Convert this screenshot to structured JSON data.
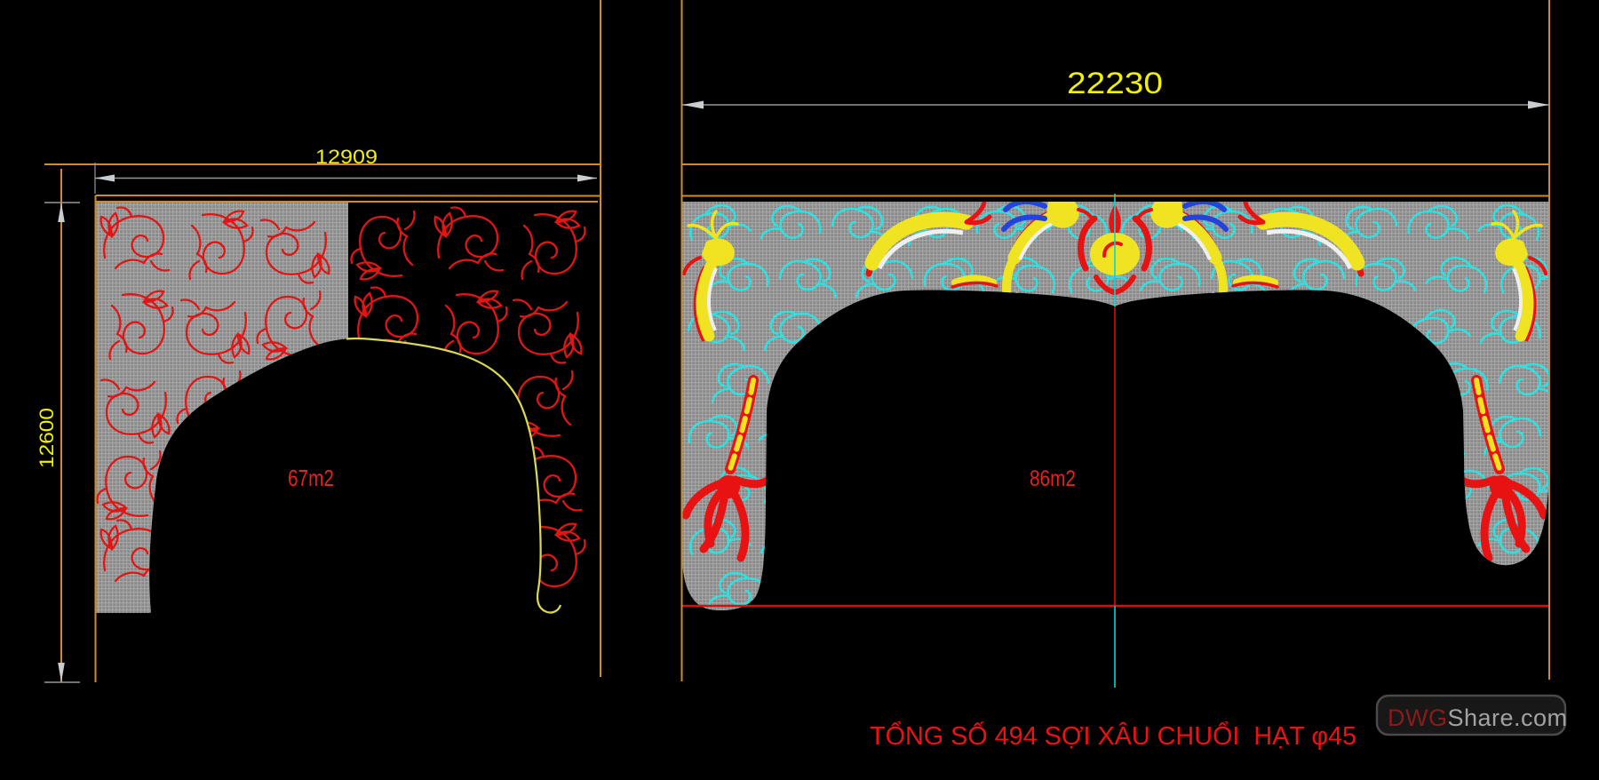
{
  "drawing_left": {
    "width_dim": "12909",
    "height_dim": "12600",
    "area_label": "67m2"
  },
  "drawing_right": {
    "width_dim": "22230",
    "area_label": "86m2"
  },
  "footer_note": "TỔNG SỐ 494 SỢI XÂU CHUỔI  HẠT φ45",
  "watermark": {
    "prefix": "DWG",
    "suffix": "Share.com"
  },
  "colors": {
    "dim_text": "#F2F200",
    "area_text": "#E82020",
    "note_text": "#ED1111",
    "frame_line": "#CF8C2A",
    "dim_line": "#95989A",
    "arrow": "#C9CDCF",
    "mesh_gray": "#8F8F8F",
    "floral_red": "#E01616",
    "cloud_cyan": "#2FE0E0",
    "dragon_yellow": "#EFE322",
    "dragon_red": "#E81212",
    "dragon_blue": "#2244DD",
    "arch_outline_yellow": "#D9D955",
    "centerline_cyan": "#00D8D8",
    "centerline_red": "#D01010",
    "bottom_red_line": "#CE1212",
    "watermark_prefix": "#8B1A1A",
    "watermark_suffix": "#A2A2A2"
  }
}
